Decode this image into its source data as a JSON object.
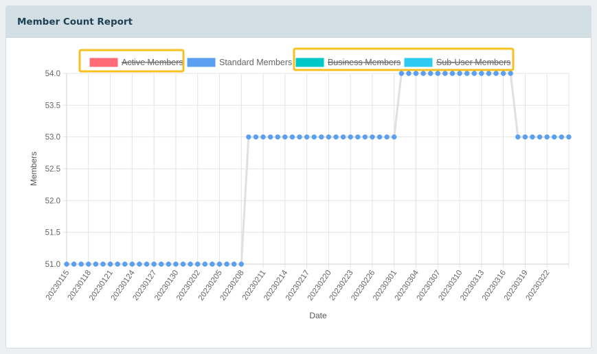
{
  "report": {
    "title": "Member Count Report"
  },
  "colors": {
    "active": "#ff6b76",
    "standard": "#5b9ff0",
    "business": "#00c8c8",
    "subuser": "#2ecbf0",
    "line": "#e0e0e0",
    "highlight": "#f7c021"
  },
  "chart_data": {
    "type": "line",
    "title": "Member Count Report",
    "xlabel": "Date",
    "ylabel": "Members",
    "ylim": [
      51.0,
      54.0
    ],
    "yticks": [
      "51.0",
      "51.5",
      "52.0",
      "52.5",
      "53.0",
      "53.5",
      "54.0"
    ],
    "x_tick_labels": [
      "20230115",
      "20230118",
      "20230121",
      "20230124",
      "20230127",
      "20230130",
      "20230202",
      "20230205",
      "20230208",
      "20230211",
      "20230214",
      "20230217",
      "20230220",
      "20230223",
      "20230226",
      "20230301",
      "20230304",
      "20230307",
      "20230310",
      "20230313",
      "20230316",
      "20230319",
      "20230322"
    ],
    "legend": [
      {
        "name": "Active Members",
        "color": "#ff6b76",
        "hidden": true
      },
      {
        "name": "Standard Members",
        "color": "#5b9ff0",
        "hidden": false
      },
      {
        "name": "Business Members",
        "color": "#00c8c8",
        "hidden": true
      },
      {
        "name": "Sub-User Members",
        "color": "#2ecbf0",
        "hidden": true
      }
    ],
    "series": [
      {
        "name": "Standard Members",
        "start_date": "20230115",
        "values": [
          51,
          51,
          51,
          51,
          51,
          51,
          51,
          51,
          51,
          51,
          51,
          51,
          51,
          51,
          51,
          51,
          51,
          51,
          51,
          51,
          51,
          51,
          51,
          51,
          51,
          53,
          53,
          53,
          53,
          53,
          53,
          53,
          53,
          53,
          53,
          53,
          53,
          53,
          53,
          53,
          53,
          53,
          53,
          53,
          53,
          53,
          54,
          54,
          54,
          54,
          54,
          54,
          54,
          54,
          54,
          54,
          54,
          54,
          54,
          54,
          54,
          54,
          53,
          53,
          53,
          53,
          53,
          53,
          53,
          53
        ]
      }
    ]
  }
}
